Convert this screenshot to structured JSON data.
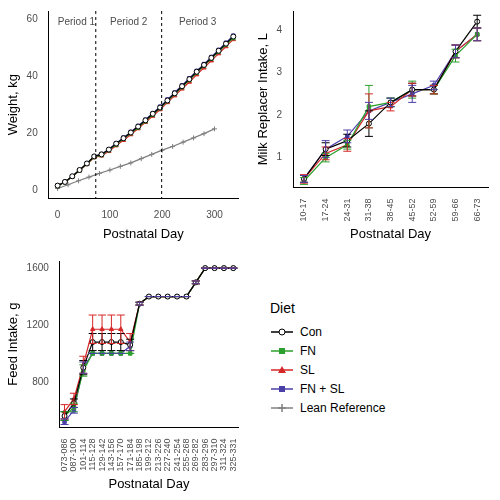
{
  "chart_data": [
    {
      "type": "line",
      "x_label": "Postnatal Day",
      "y_label": "Weight, kg",
      "xlim": [
        -17,
        345
      ],
      "xticks": [
        0,
        100,
        200,
        300
      ],
      "ylim": [
        -3,
        63
      ],
      "yticks": [
        0,
        20,
        40,
        60
      ],
      "grid": false,
      "vlines": [
        73,
        199
      ],
      "annotations": [
        {
          "text": "Period 1",
          "x": 36,
          "y": 59
        },
        {
          "text": "Period 2",
          "x": 136,
          "y": 59
        },
        {
          "text": "Period 3",
          "x": 268,
          "y": 59
        }
      ],
      "x": [
        0,
        14,
        28,
        42,
        56,
        70,
        84,
        98,
        112,
        126,
        140,
        154,
        168,
        182,
        196,
        210,
        224,
        238,
        252,
        266,
        280,
        294,
        308,
        322,
        336
      ],
      "series": [
        {
          "name": "Con",
          "color": "#000000",
          "marker": "circle_open",
          "line_style": "solid",
          "values": [
            1.5,
            2.8,
            4.8,
            7.0,
            9.3,
            11.8,
            12.5,
            14.2,
            16.3,
            18.2,
            20.2,
            22.3,
            24.5,
            26.8,
            29.0,
            31.5,
            34.0,
            36.5,
            39.0,
            41.6,
            44.0,
            46.5,
            49.0,
            51.5,
            54.0
          ]
        },
        {
          "name": "FN",
          "color": "#2ca02c",
          "marker": "square",
          "line_style": "solid",
          "values": [
            1.5,
            2.7,
            4.7,
            6.9,
            9.2,
            11.6,
            12.3,
            14.0,
            16.0,
            18.0,
            20.0,
            22.0,
            24.2,
            26.5,
            28.8,
            31.3,
            33.8,
            36.2,
            38.7,
            41.3,
            43.7,
            46.2,
            48.7,
            51.2,
            53.5
          ]
        },
        {
          "name": "SL",
          "color": "#d62728",
          "marker": "triangle",
          "line_style": "solid",
          "values": [
            1.5,
            2.7,
            4.6,
            6.8,
            9.0,
            11.4,
            12.0,
            13.6,
            15.6,
            17.5,
            19.5,
            21.6,
            23.8,
            26.0,
            28.3,
            30.8,
            33.2,
            35.6,
            38.0,
            40.6,
            43.0,
            45.5,
            48.0,
            50.5,
            53.0
          ]
        },
        {
          "name": "FN + SL",
          "color": "#4b3fa8",
          "marker": "square",
          "line_style": "solid",
          "values": [
            1.5,
            2.8,
            4.8,
            7.0,
            9.3,
            11.8,
            12.6,
            14.3,
            16.4,
            18.4,
            20.4,
            22.5,
            24.7,
            27.0,
            29.3,
            31.8,
            34.3,
            36.8,
            39.3,
            41.9,
            44.3,
            46.8,
            49.3,
            51.8,
            54.3
          ]
        },
        {
          "name": "Lean Reference",
          "color": "#808080",
          "marker": "cross",
          "line_style": "solid",
          "x": [
            0,
            20,
            40,
            60,
            80,
            100,
            120,
            140,
            160,
            180,
            200,
            220,
            240,
            260,
            280,
            300
          ],
          "values": [
            0.5,
            1.8,
            3.2,
            4.5,
            5.8,
            7.0,
            8.3,
            9.5,
            11.0,
            12.5,
            14.0,
            15.3,
            16.8,
            18.3,
            19.8,
            21.5
          ]
        }
      ]
    },
    {
      "type": "line",
      "x_label": "Postnatal Day",
      "y_label": "Milk Replacer Intake, L",
      "ylim": [
        0.3,
        4.45
      ],
      "yticks": [
        1,
        2,
        3,
        4
      ],
      "grid": false,
      "categories": [
        "10-17",
        "17-24",
        "24-31",
        "31-38",
        "38-45",
        "45-52",
        "52-59",
        "59-66",
        "66-73"
      ],
      "series": [
        {
          "name": "Con",
          "color": "#000000",
          "marker": "circle_open",
          "line_style": "solid",
          "values": [
            0.5,
            1.2,
            1.4,
            1.8,
            2.3,
            2.6,
            2.6,
            3.5,
            4.2
          ],
          "errors": [
            0.08,
            0.15,
            0.15,
            0.3,
            0.1,
            0.15,
            0.1,
            0.15,
            0.15
          ]
        },
        {
          "name": "FN",
          "color": "#2ca02c",
          "marker": "square",
          "line_style": "solid",
          "values": [
            0.45,
            1.0,
            1.3,
            2.2,
            2.3,
            2.6,
            2.6,
            3.4,
            3.9
          ],
          "errors": [
            0.08,
            0.1,
            0.1,
            0.5,
            0.1,
            0.2,
            0.1,
            0.15,
            0.15
          ]
        },
        {
          "name": "SL",
          "color": "#d62728",
          "marker": "triangle",
          "line_style": "solid",
          "values": [
            0.5,
            1.1,
            1.3,
            2.1,
            2.2,
            2.6,
            2.6,
            3.5,
            3.9
          ],
          "errors": [
            0.1,
            0.15,
            0.15,
            0.4,
            0.1,
            0.15,
            0.1,
            0.15,
            0.15
          ]
        },
        {
          "name": "FN + SL",
          "color": "#4b3fa8",
          "marker": "square",
          "line_style": "solid",
          "values": [
            0.5,
            1.2,
            1.5,
            2.1,
            2.3,
            2.5,
            2.7,
            3.5,
            3.9
          ],
          "errors": [
            0.08,
            0.2,
            0.15,
            0.2,
            0.1,
            0.2,
            0.1,
            0.15,
            0.15
          ]
        }
      ]
    },
    {
      "type": "line",
      "x_label": "Postnatal Day",
      "y_label": "Feed Intake, g",
      "ylim": [
        480,
        1650
      ],
      "yticks": [
        800,
        1200,
        1600
      ],
      "grid": false,
      "categories": [
        "073-086",
        "087-100",
        "101-114",
        "115-128",
        "129-142",
        "143-156",
        "157-170",
        "171-184",
        "185-198",
        "199-212",
        "213-226",
        "227-240",
        "241-254",
        "255-268",
        "269-282",
        "283-296",
        "297-310",
        "311-324",
        "325-331"
      ],
      "series": [
        {
          "name": "Con",
          "color": "#000000",
          "marker": "circle_open",
          "line_style": "solid",
          "values": [
            560,
            650,
            900,
            1080,
            1080,
            1080,
            1080,
            1060,
            1350,
            1400,
            1400,
            1400,
            1400,
            1400,
            1500,
            1600,
            1600,
            1600,
            1600
          ],
          "errors": [
            30,
            30,
            50,
            60,
            60,
            60,
            60,
            40,
            10,
            0,
            0,
            0,
            0,
            0,
            10,
            0,
            0,
            0,
            0
          ]
        },
        {
          "name": "FN",
          "color": "#2ca02c",
          "marker": "square",
          "line_style": "solid",
          "values": [
            560,
            620,
            880,
            1000,
            1000,
            1000,
            1000,
            1000,
            1350,
            1400,
            1400,
            1400,
            1400,
            1400,
            1500,
            1600,
            1600,
            1600,
            1600
          ],
          "errors": [
            30,
            30,
            40,
            0,
            0,
            0,
            0,
            0,
            10,
            0,
            0,
            0,
            0,
            0,
            10,
            0,
            0,
            0,
            0
          ]
        },
        {
          "name": "SL",
          "color": "#d62728",
          "marker": "triangle",
          "line_style": "solid",
          "values": [
            590,
            680,
            920,
            1170,
            1170,
            1170,
            1170,
            1080,
            1350,
            1400,
            1400,
            1400,
            1400,
            1400,
            1500,
            1600,
            1600,
            1600,
            1600
          ],
          "errors": [
            50,
            40,
            60,
            100,
            100,
            100,
            100,
            60,
            10,
            0,
            0,
            0,
            0,
            0,
            10,
            0,
            0,
            0,
            0
          ]
        },
        {
          "name": "FN + SL",
          "color": "#4b3fa8",
          "marker": "square",
          "line_style": "solid",
          "values": [
            520,
            600,
            900,
            1000,
            1000,
            1000,
            1000,
            1050,
            1350,
            1400,
            1400,
            1400,
            1400,
            1400,
            1500,
            1600,
            1600,
            1600,
            1600
          ],
          "errors": [
            20,
            20,
            40,
            0,
            0,
            0,
            0,
            30,
            10,
            0,
            0,
            0,
            0,
            0,
            10,
            0,
            0,
            0,
            0
          ]
        }
      ]
    }
  ],
  "legend": "bottom-right",
  "legend_title": "Diet"
}
